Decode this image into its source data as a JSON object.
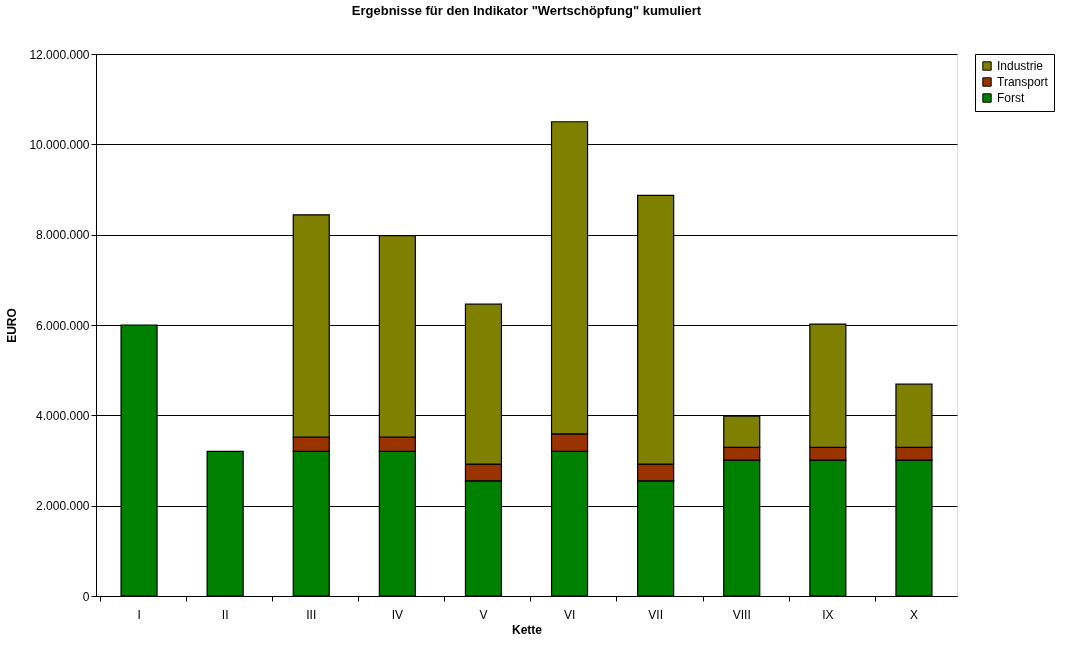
{
  "chart_data": {
    "type": "bar",
    "title": "Ergebnisse für den Indikator \"Wertschöpfung\" kumuliert",
    "xlabel": "Kette",
    "ylabel": "EURO",
    "categories": [
      "I",
      "II",
      "III",
      "IV",
      "V",
      "VI",
      "VII",
      "VIII",
      "IX",
      "X"
    ],
    "stacked": true,
    "series": [
      {
        "name": "Forst",
        "color": "#008000",
        "values": [
          6000000,
          3200000,
          3200000,
          3200000,
          2550000,
          3200000,
          2550000,
          3010000,
          3010000,
          3010000
        ]
      },
      {
        "name": "Transport",
        "color": "#993300",
        "values": [
          null,
          null,
          320000,
          320000,
          370000,
          390000,
          370000,
          280000,
          280000,
          280000
        ]
      },
      {
        "name": "Industrie",
        "color": "#808000",
        "values": [
          null,
          null,
          4920000,
          4460000,
          3540000,
          6910000,
          5950000,
          690000,
          2730000,
          1400000
        ]
      }
    ],
    "ylim": [
      0,
      12000000
    ],
    "yticks": [
      {
        "value": 0,
        "label": "0"
      },
      {
        "value": 2000000,
        "label": "2.000.000"
      },
      {
        "value": 4000000,
        "label": "4.000.000"
      },
      {
        "value": 6000000,
        "label": "6.000.000"
      },
      {
        "value": 8000000,
        "label": "8.000.000"
      },
      {
        "value": 10000000,
        "label": "10.000.000"
      },
      {
        "value": 12000000,
        "label": "12.000.000"
      }
    ],
    "grid": "y",
    "legend": "right"
  }
}
